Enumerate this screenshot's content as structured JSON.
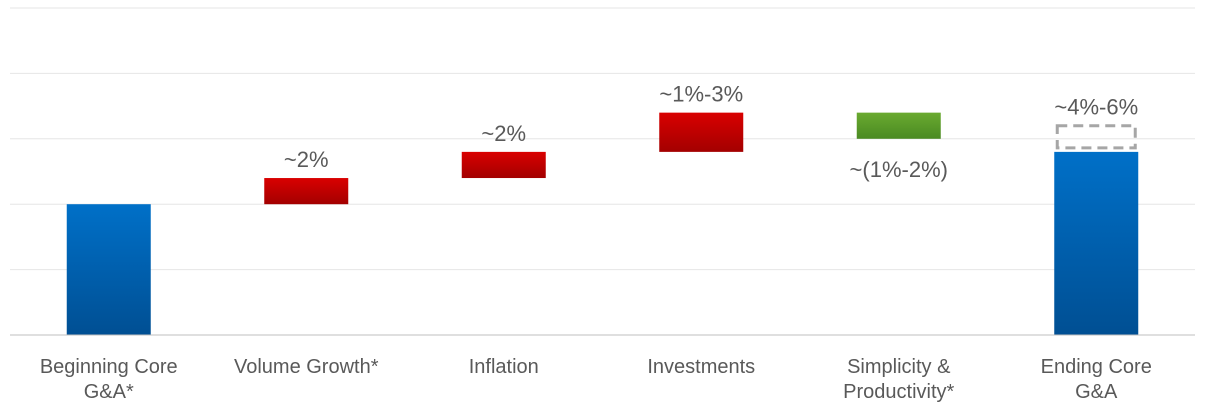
{
  "chart_data": {
    "type": "bar",
    "subtype": "waterfall",
    "grid": true,
    "legend": "none",
    "ylim": [
      0,
      25
    ],
    "categories": [
      [
        "Beginning Core",
        "G&A*"
      ],
      [
        "Volume Growth*"
      ],
      [
        "Inflation"
      ],
      [
        "Investments"
      ],
      [
        "Simplicity &",
        "Productivity*"
      ],
      [
        "Ending Core",
        "G&A"
      ]
    ],
    "bars": [
      {
        "kind": "total",
        "start": 0,
        "end": 10,
        "label": "",
        "color": "#1565b5"
      },
      {
        "kind": "increase",
        "start": 10,
        "end": 12,
        "label": "~2%",
        "label_pos": "above",
        "color": "#c00000"
      },
      {
        "kind": "increase",
        "start": 12,
        "end": 14,
        "label": "~2%",
        "label_pos": "above",
        "color": "#c00000"
      },
      {
        "kind": "increase",
        "start": 14,
        "end": 17,
        "label": "~1%-3%",
        "label_pos": "above",
        "color": "#c00000"
      },
      {
        "kind": "decrease",
        "start": 17,
        "end": 15,
        "label": "~(1%-2%)",
        "label_pos": "below",
        "color": "#5a9a2c"
      },
      {
        "kind": "total",
        "start": 0,
        "end": 14,
        "range_end": 16,
        "label": "~4%-6%",
        "label_pos": "above",
        "color": "#1565b5"
      }
    ],
    "colors": {
      "increase": "#c00000",
      "decrease": "#5a9a2c",
      "total": "#1565b5",
      "range_outline": "#a6a6a6",
      "grid": "#e6e6e6",
      "axis": "#bfbfbf",
      "text": "#595959"
    }
  }
}
